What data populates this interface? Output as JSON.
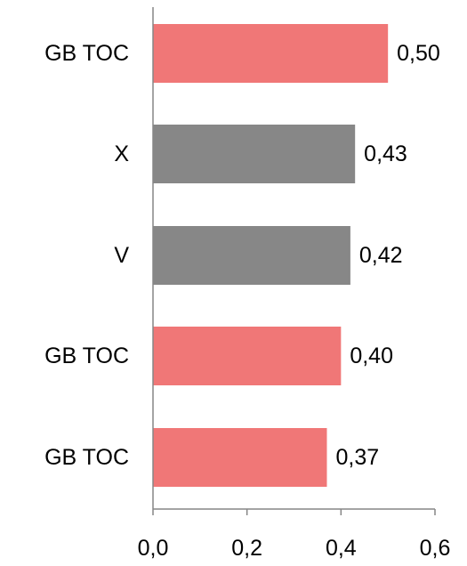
{
  "chart_data": {
    "type": "bar",
    "orientation": "horizontal",
    "categories": [
      "GB TOC",
      "X",
      "V",
      "GB TOC",
      "GB TOC"
    ],
    "values": [
      0.5,
      0.43,
      0.42,
      0.4,
      0.37
    ],
    "value_labels": [
      "0,50",
      "0,43",
      "0,42",
      "0,40",
      "0,37"
    ],
    "bar_colors": [
      "#f07777",
      "#878787",
      "#878787",
      "#f07777",
      "#f07777"
    ],
    "x_ticks": [
      0.0,
      0.2,
      0.4,
      0.6
    ],
    "x_tick_labels": [
      "0,0",
      "0,2",
      "0,4",
      "0,6"
    ],
    "xlim": [
      0,
      0.6
    ],
    "title": "",
    "xlabel": "",
    "ylabel": "",
    "grid": false,
    "legend": false
  }
}
